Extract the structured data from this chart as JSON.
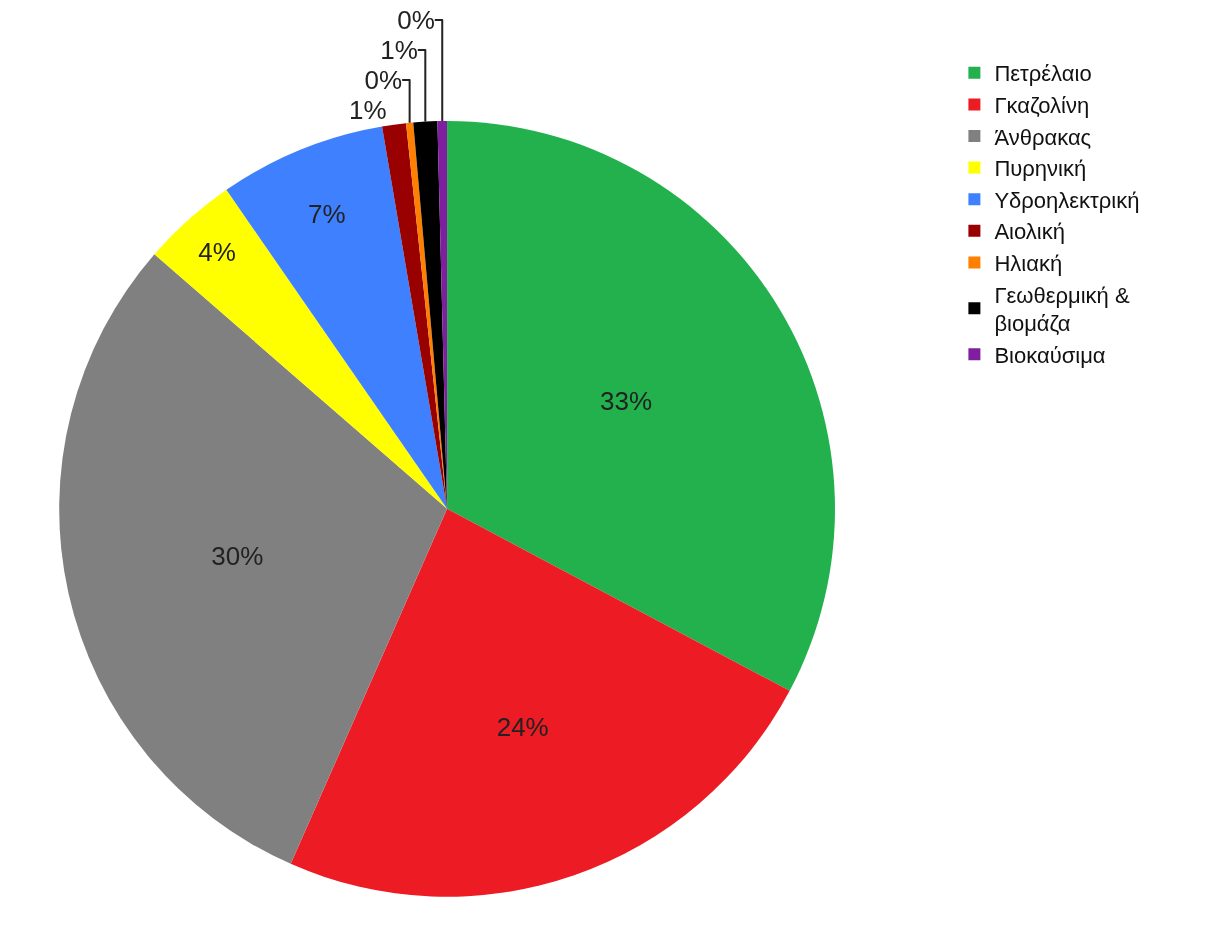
{
  "chart_data": {
    "type": "pie",
    "categories": [
      "Πετρέλαιο",
      "Γκαζολίνη",
      "Άνθρακας",
      "Πυρηνική",
      "Υδροηλεκτρική",
      "Αιολική",
      "Ηλιακή",
      "Γεωθερμική &\nβιομάζα",
      "Βιοκαύσιμα"
    ],
    "values": [
      33,
      24,
      30,
      4,
      7,
      1,
      0.3,
      1,
      0.4
    ],
    "value_labels": [
      "33%",
      "24%",
      "30%",
      "4%",
      "7%",
      "1%",
      "0%",
      "1%",
      "0%"
    ],
    "colors": [
      "#22b14c",
      "#ed1c24",
      "#808080",
      "#ffff00",
      "#3f80ff",
      "#990000",
      "#ff7f00",
      "#000000",
      "#7f1f9f"
    ],
    "legend": "right"
  }
}
